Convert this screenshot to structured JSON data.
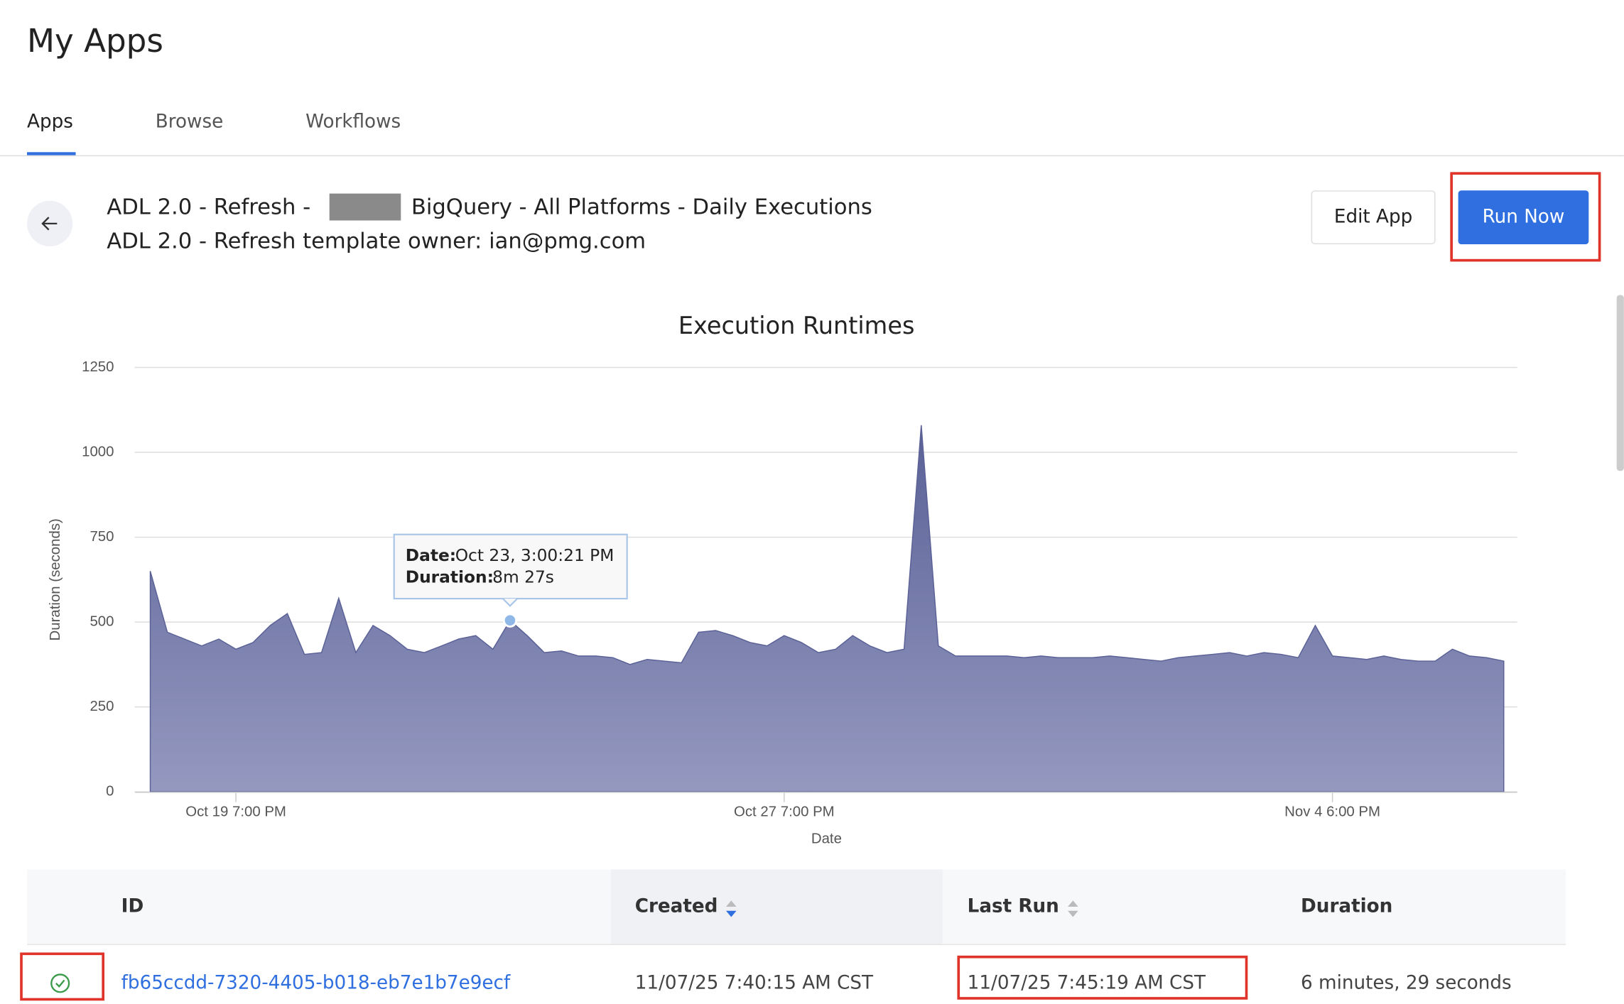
{
  "header": {
    "title": "My Apps"
  },
  "tabs": [
    "Apps",
    "Browse",
    "Workflows"
  ],
  "app": {
    "title_before": "ADL 2.0 - Refresh -",
    "title_after": "BigQuery - All Platforms - Daily Executions",
    "subtitle": "ADL 2.0 - Refresh template owner: ian@pmg.com"
  },
  "buttons": {
    "edit": "Edit App",
    "run": "Run Now"
  },
  "chart_data": {
    "type": "area",
    "title": "Execution Runtimes",
    "x_label": "Date",
    "y_label": "Duration (seconds)",
    "categories": [
      null,
      null,
      null,
      null,
      null,
      "Oct 19 7:00 PM",
      null,
      null,
      null,
      null,
      null,
      null,
      null,
      null,
      null,
      null,
      null,
      null,
      null,
      null,
      null,
      null,
      null,
      null,
      null,
      null,
      null,
      null,
      null,
      null,
      null,
      null,
      null,
      null,
      null,
      null,
      null,
      "Oct 27 7:00 PM",
      null,
      null,
      null,
      null,
      null,
      null,
      null,
      null,
      null,
      null,
      null,
      null,
      null,
      null,
      null,
      null,
      null,
      null,
      null,
      null,
      null,
      null,
      null,
      null,
      null,
      null,
      null,
      null,
      null,
      null,
      null,
      "Nov 4 6:00 PM",
      null,
      null,
      null,
      null,
      null,
      null,
      null,
      null,
      null,
      null
    ],
    "values": [
      650,
      470,
      450,
      430,
      450,
      420,
      440,
      490,
      525,
      405,
      410,
      570,
      410,
      490,
      460,
      420,
      410,
      430,
      450,
      460,
      420,
      505,
      460,
      410,
      415,
      400,
      400,
      395,
      375,
      390,
      385,
      380,
      470,
      475,
      460,
      440,
      430,
      460,
      440,
      410,
      420,
      460,
      430,
      410,
      420,
      1080,
      430,
      400,
      400,
      400,
      400,
      395,
      400,
      395,
      395,
      395,
      400,
      395,
      390,
      385,
      395,
      400,
      405,
      410,
      400,
      410,
      405,
      395,
      490,
      400,
      395,
      390,
      400,
      390,
      385,
      385,
      420,
      400,
      395,
      385
    ],
    "ylim": [
      0,
      1250
    ],
    "yticks": [
      0,
      250,
      500,
      750,
      1000,
      1250
    ],
    "grid": true,
    "color": "#5a6196",
    "tooltip": {
      "index": 21,
      "date_label": "Date:",
      "date": "Oct 23, 3:00:21 PM",
      "duration_label": "Duration:",
      "duration": "8m 27s"
    }
  },
  "table": {
    "columns": [
      "ID",
      "Created",
      "Last Run",
      "Duration"
    ],
    "rows": [
      [
        "fb65ccdd-7320-4405-b018-eb7e1b7e9ecf",
        "11/07/25 7:40:15 AM CST",
        "11/07/25 7:45:19 AM CST",
        "6 minutes, 29 seconds"
      ]
    ]
  }
}
